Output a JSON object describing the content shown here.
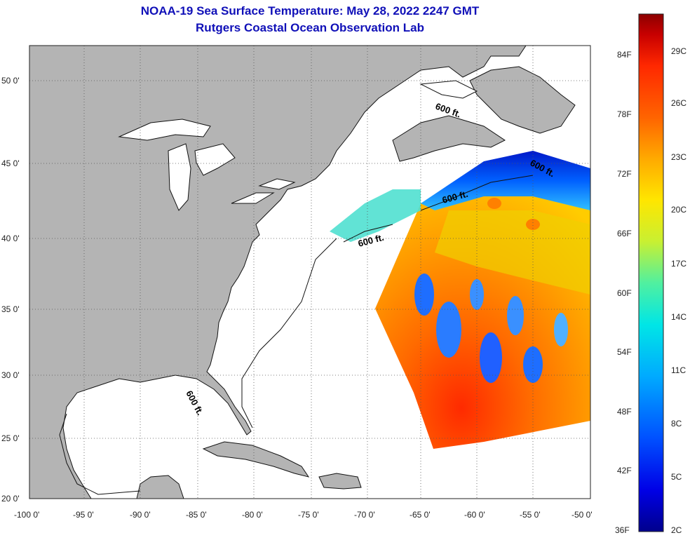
{
  "title": {
    "line1": "NOAA-19 Sea Surface Temperature:  May 28, 2022 2247 GMT",
    "line2": "Rutgers Coastal Ocean Observation Lab"
  },
  "map": {
    "lon_range": [
      -100,
      -50
    ],
    "lat_range": [
      20,
      52.5
    ],
    "lon_ticks": [
      "-100 0'",
      "-95 0'",
      "-90 0'",
      "-85 0'",
      "-80 0'",
      "-75 0'",
      "-70 0'",
      "-65 0'",
      "-60 0'",
      "-55 0'",
      "-50 0'"
    ],
    "lat_ticks": [
      "50 0'",
      "45 0'",
      "40 0'",
      "35 0'",
      "30 0'",
      "25 0'",
      "20 0'"
    ],
    "land_color": "#b4b4b4",
    "grid": "dotted",
    "contour_labels": [
      "600 ft.",
      "600 ft.",
      "600 ft.",
      "600 ft.",
      "600 ft."
    ]
  },
  "colorbar": {
    "fahrenheit_labels": [
      "84F",
      "78F",
      "72F",
      "66F",
      "60F",
      "54F",
      "48F",
      "42F",
      "36F"
    ],
    "celsius_labels": [
      "29C",
      "26C",
      "23C",
      "20C",
      "17C",
      "14C",
      "11C",
      "8C",
      "5C",
      "2C"
    ],
    "colors": [
      "#00008c",
      "#0000e6",
      "#0050ff",
      "#00aaff",
      "#00e6e6",
      "#50f0a0",
      "#c8f032",
      "#ffe600",
      "#ffaa00",
      "#ff6400",
      "#ff2800",
      "#c80000",
      "#8c0000"
    ]
  }
}
